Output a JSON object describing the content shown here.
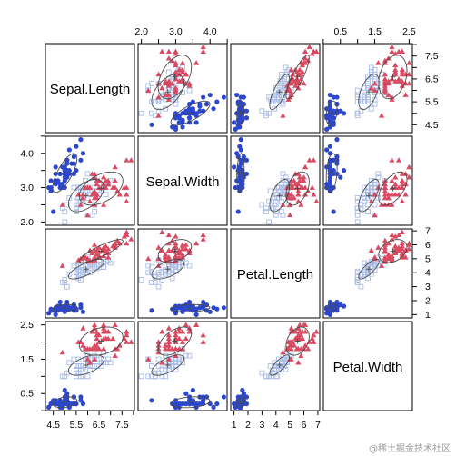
{
  "chart_data": {
    "type": "scatter-matrix",
    "variables": [
      "Sepal.Length",
      "Sepal.Width",
      "Petal.Length",
      "Petal.Width"
    ],
    "ranges": {
      "Sepal.Length": [
        4.3,
        7.9
      ],
      "Sepal.Width": [
        2.0,
        4.4
      ],
      "Petal.Length": [
        1.0,
        6.9
      ],
      "Petal.Width": [
        0.1,
        2.5
      ]
    },
    "ticks": {
      "Sepal.Length": [
        "4.5",
        "5.5",
        "6.5",
        "7.5"
      ],
      "Sepal.Width": [
        "2.0",
        "3.0",
        "4.0"
      ],
      "Petal.Length": [
        "1",
        "2",
        "3",
        "4",
        "5",
        "6",
        "7"
      ],
      "Petal.Width": [
        "0.5",
        "1.5",
        "2.5"
      ]
    },
    "minor_tick_step": {
      "Sepal.Length": 0.5,
      "Sepal.Width": 0.5,
      "Petal.Length": 1,
      "Petal.Width": 0.5
    },
    "tick_sides": {
      "top": [
        1,
        3
      ],
      "bottom": [
        0,
        2
      ],
      "left": [
        1,
        3
      ],
      "right": [
        0,
        2
      ]
    },
    "series": [
      {
        "marker": "filled-circle",
        "color": "#2c47cc",
        "points": [
          [
            5.1,
            3.5,
            1.4,
            0.2
          ],
          [
            4.9,
            3.0,
            1.4,
            0.2
          ],
          [
            4.7,
            3.2,
            1.3,
            0.2
          ],
          [
            4.6,
            3.1,
            1.5,
            0.2
          ],
          [
            5.0,
            3.6,
            1.4,
            0.2
          ],
          [
            5.4,
            3.9,
            1.7,
            0.4
          ],
          [
            4.6,
            3.4,
            1.4,
            0.3
          ],
          [
            5.0,
            3.4,
            1.5,
            0.2
          ],
          [
            4.4,
            2.9,
            1.4,
            0.2
          ],
          [
            4.9,
            3.1,
            1.5,
            0.1
          ],
          [
            5.4,
            3.7,
            1.5,
            0.2
          ],
          [
            4.8,
            3.4,
            1.6,
            0.2
          ],
          [
            4.8,
            3.0,
            1.4,
            0.1
          ],
          [
            4.3,
            3.0,
            1.1,
            0.1
          ],
          [
            5.8,
            4.0,
            1.2,
            0.2
          ],
          [
            5.7,
            4.4,
            1.5,
            0.4
          ],
          [
            5.4,
            3.9,
            1.3,
            0.4
          ],
          [
            5.1,
            3.5,
            1.4,
            0.3
          ],
          [
            5.7,
            3.8,
            1.7,
            0.3
          ],
          [
            5.1,
            3.8,
            1.5,
            0.3
          ],
          [
            5.4,
            3.4,
            1.7,
            0.2
          ],
          [
            5.1,
            3.7,
            1.5,
            0.4
          ],
          [
            4.6,
            3.6,
            1.0,
            0.2
          ],
          [
            5.1,
            3.3,
            1.7,
            0.5
          ],
          [
            4.8,
            3.4,
            1.9,
            0.2
          ],
          [
            5.0,
            3.0,
            1.6,
            0.2
          ],
          [
            5.0,
            3.4,
            1.6,
            0.4
          ],
          [
            5.2,
            3.5,
            1.5,
            0.2
          ],
          [
            5.2,
            3.4,
            1.4,
            0.2
          ],
          [
            4.7,
            3.2,
            1.6,
            0.2
          ],
          [
            4.8,
            3.1,
            1.6,
            0.2
          ],
          [
            5.4,
            3.4,
            1.5,
            0.4
          ],
          [
            5.2,
            4.1,
            1.5,
            0.1
          ],
          [
            5.5,
            4.2,
            1.4,
            0.2
          ],
          [
            4.9,
            3.1,
            1.5,
            0.2
          ],
          [
            5.0,
            3.2,
            1.2,
            0.2
          ],
          [
            5.5,
            3.5,
            1.3,
            0.2
          ],
          [
            4.9,
            3.6,
            1.4,
            0.1
          ],
          [
            4.4,
            3.0,
            1.3,
            0.2
          ],
          [
            5.1,
            3.4,
            1.5,
            0.2
          ],
          [
            5.0,
            3.5,
            1.3,
            0.3
          ],
          [
            4.5,
            2.3,
            1.3,
            0.3
          ],
          [
            4.4,
            3.2,
            1.3,
            0.2
          ],
          [
            5.0,
            3.5,
            1.6,
            0.6
          ],
          [
            5.1,
            3.8,
            1.9,
            0.4
          ],
          [
            4.8,
            3.0,
            1.4,
            0.3
          ],
          [
            5.1,
            3.8,
            1.6,
            0.2
          ],
          [
            4.6,
            3.2,
            1.4,
            0.2
          ],
          [
            5.3,
            3.7,
            1.5,
            0.2
          ],
          [
            5.0,
            3.3,
            1.4,
            0.2
          ]
        ]
      },
      {
        "marker": "open-square",
        "color": "#a9bde6",
        "points": [
          [
            7.0,
            3.2,
            4.7,
            1.4
          ],
          [
            6.4,
            3.2,
            4.5,
            1.5
          ],
          [
            6.9,
            3.1,
            4.9,
            1.5
          ],
          [
            5.5,
            2.3,
            4.0,
            1.3
          ],
          [
            6.5,
            2.8,
            4.6,
            1.5
          ],
          [
            5.7,
            2.8,
            4.5,
            1.3
          ],
          [
            6.3,
            3.3,
            4.7,
            1.6
          ],
          [
            4.9,
            2.4,
            3.3,
            1.0
          ],
          [
            6.6,
            2.9,
            4.6,
            1.3
          ],
          [
            5.2,
            2.7,
            3.9,
            1.4
          ],
          [
            5.0,
            2.0,
            3.5,
            1.0
          ],
          [
            5.9,
            3.0,
            4.2,
            1.5
          ],
          [
            6.0,
            2.2,
            4.0,
            1.0
          ],
          [
            6.1,
            2.9,
            4.7,
            1.4
          ],
          [
            5.6,
            2.9,
            3.6,
            1.3
          ],
          [
            6.7,
            3.1,
            4.4,
            1.4
          ],
          [
            5.6,
            3.0,
            4.5,
            1.5
          ],
          [
            5.8,
            2.7,
            4.1,
            1.0
          ],
          [
            6.2,
            2.2,
            4.5,
            1.5
          ],
          [
            5.6,
            2.5,
            3.9,
            1.1
          ],
          [
            5.9,
            3.2,
            4.8,
            1.8
          ],
          [
            6.1,
            2.8,
            4.0,
            1.3
          ],
          [
            6.3,
            2.5,
            4.9,
            1.5
          ],
          [
            6.1,
            2.8,
            4.7,
            1.2
          ],
          [
            6.4,
            2.9,
            4.3,
            1.3
          ],
          [
            6.6,
            3.0,
            4.4,
            1.4
          ],
          [
            6.8,
            2.8,
            4.8,
            1.4
          ],
          [
            6.7,
            3.0,
            5.0,
            1.7
          ],
          [
            6.0,
            2.9,
            4.5,
            1.5
          ],
          [
            5.7,
            2.6,
            3.5,
            1.0
          ],
          [
            5.5,
            2.4,
            3.8,
            1.1
          ],
          [
            5.5,
            2.4,
            3.7,
            1.0
          ],
          [
            5.8,
            2.7,
            3.9,
            1.2
          ],
          [
            6.0,
            2.7,
            5.1,
            1.6
          ],
          [
            5.4,
            3.0,
            4.5,
            1.5
          ],
          [
            6.0,
            3.4,
            4.5,
            1.6
          ],
          [
            6.7,
            3.1,
            4.7,
            1.5
          ],
          [
            6.3,
            2.3,
            4.4,
            1.3
          ],
          [
            5.6,
            3.0,
            4.1,
            1.3
          ],
          [
            5.5,
            2.5,
            4.0,
            1.3
          ],
          [
            5.5,
            2.6,
            4.4,
            1.2
          ],
          [
            6.1,
            3.0,
            4.6,
            1.4
          ],
          [
            5.8,
            2.6,
            4.0,
            1.2
          ],
          [
            5.0,
            2.3,
            3.3,
            1.0
          ],
          [
            5.6,
            2.7,
            4.2,
            1.3
          ],
          [
            5.7,
            3.0,
            4.2,
            1.2
          ],
          [
            5.7,
            2.9,
            4.2,
            1.3
          ],
          [
            6.2,
            2.9,
            4.3,
            1.3
          ],
          [
            5.1,
            2.5,
            3.0,
            1.1
          ],
          [
            5.7,
            2.8,
            4.1,
            1.3
          ]
        ]
      },
      {
        "marker": "filled-triangle",
        "color": "#d94a61",
        "points": [
          [
            6.3,
            3.3,
            6.0,
            2.5
          ],
          [
            5.8,
            2.7,
            5.1,
            1.9
          ],
          [
            7.1,
            3.0,
            5.9,
            2.1
          ],
          [
            6.3,
            2.9,
            5.6,
            1.8
          ],
          [
            6.5,
            3.0,
            5.8,
            2.2
          ],
          [
            7.6,
            3.0,
            6.6,
            2.1
          ],
          [
            4.9,
            2.5,
            4.5,
            1.7
          ],
          [
            7.3,
            2.9,
            6.3,
            1.8
          ],
          [
            6.7,
            2.5,
            5.8,
            1.8
          ],
          [
            7.2,
            3.6,
            6.1,
            2.5
          ],
          [
            6.5,
            3.2,
            5.1,
            2.0
          ],
          [
            6.4,
            2.7,
            5.3,
            1.9
          ],
          [
            6.8,
            3.0,
            5.5,
            2.1
          ],
          [
            5.7,
            2.5,
            5.0,
            2.0
          ],
          [
            5.8,
            2.8,
            5.1,
            2.4
          ],
          [
            6.4,
            3.2,
            5.3,
            2.3
          ],
          [
            6.5,
            3.0,
            5.5,
            1.8
          ],
          [
            7.7,
            3.8,
            6.7,
            2.2
          ],
          [
            7.7,
            2.6,
            6.9,
            2.3
          ],
          [
            6.0,
            2.2,
            5.0,
            1.5
          ],
          [
            6.9,
            3.2,
            5.7,
            2.3
          ],
          [
            5.6,
            2.8,
            4.9,
            2.0
          ],
          [
            7.7,
            2.8,
            6.7,
            2.0
          ],
          [
            6.3,
            2.7,
            4.9,
            1.8
          ],
          [
            6.7,
            3.3,
            5.7,
            2.1
          ],
          [
            7.2,
            3.2,
            6.0,
            1.8
          ],
          [
            6.2,
            2.8,
            4.8,
            1.8
          ],
          [
            6.1,
            3.0,
            4.9,
            1.8
          ],
          [
            6.4,
            2.8,
            5.6,
            2.1
          ],
          [
            7.2,
            3.0,
            5.8,
            1.6
          ],
          [
            7.4,
            2.8,
            6.1,
            1.9
          ],
          [
            7.9,
            3.8,
            6.4,
            2.0
          ],
          [
            6.4,
            2.8,
            5.6,
            2.2
          ],
          [
            6.3,
            2.8,
            5.1,
            1.5
          ],
          [
            6.1,
            2.6,
            5.6,
            1.4
          ],
          [
            7.7,
            3.0,
            6.1,
            2.3
          ],
          [
            6.3,
            3.4,
            5.6,
            2.4
          ],
          [
            6.4,
            3.1,
            5.5,
            1.8
          ],
          [
            6.0,
            3.0,
            4.8,
            1.8
          ],
          [
            6.9,
            3.1,
            5.4,
            2.1
          ],
          [
            6.7,
            3.1,
            5.6,
            2.4
          ],
          [
            6.9,
            3.1,
            5.1,
            2.3
          ],
          [
            5.8,
            2.7,
            5.1,
            1.9
          ],
          [
            6.8,
            3.2,
            5.9,
            2.3
          ],
          [
            6.7,
            3.3,
            5.7,
            2.5
          ],
          [
            6.7,
            3.0,
            5.2,
            2.3
          ],
          [
            6.3,
            2.5,
            5.0,
            1.9
          ],
          [
            6.5,
            3.0,
            5.2,
            2.0
          ],
          [
            6.2,
            3.4,
            5.4,
            2.3
          ],
          [
            5.9,
            3.0,
            5.1,
            1.8
          ]
        ]
      }
    ],
    "ellipses": true,
    "legend": "none",
    "grid": false
  },
  "colors": {
    "ellipse": "#4a4a4a",
    "frame": "#000000",
    "background": "#ffffff"
  },
  "watermark": "@稀土掘金技术社区"
}
